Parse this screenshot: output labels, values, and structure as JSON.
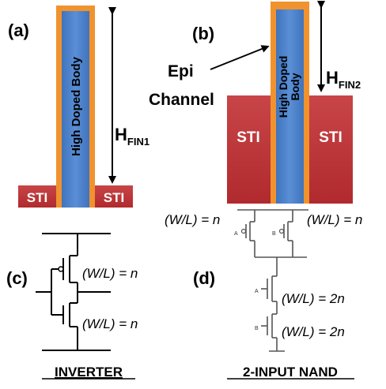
{
  "panel_a": {
    "label": "(a)",
    "body_text": "High Doped Body",
    "height_label": "H",
    "height_sub": "FIN1",
    "sti_left": "STI",
    "sti_right": "STI"
  },
  "panel_b": {
    "label": "(b)",
    "epi_line1": "Epi",
    "epi_line2": "Channel",
    "body_line1": "High Doped",
    "body_line2": "Body",
    "height_label": "H",
    "height_sub": "FIN2",
    "sti_left": "STI",
    "sti_right": "STI"
  },
  "panel_c": {
    "label": "(c)",
    "top_wl": "(W/L) = n",
    "bottom_wl": "(W/L) = n",
    "caption": "INVERTER"
  },
  "panel_d": {
    "label": "(d)",
    "pmos_left_wl": "(W/L) = n",
    "pmos_right_wl": "(W/L) = n",
    "nmos_top_wl": "(W/L) = 2n",
    "nmos_bottom_wl": "(W/L) = 2n",
    "input_a": "A",
    "input_b": "B",
    "caption": "2-INPUT NAND"
  },
  "colors": {
    "body_blue": "#4a7fc6",
    "epi_orange": "#f0922e",
    "sti_red": "#c0393b"
  }
}
